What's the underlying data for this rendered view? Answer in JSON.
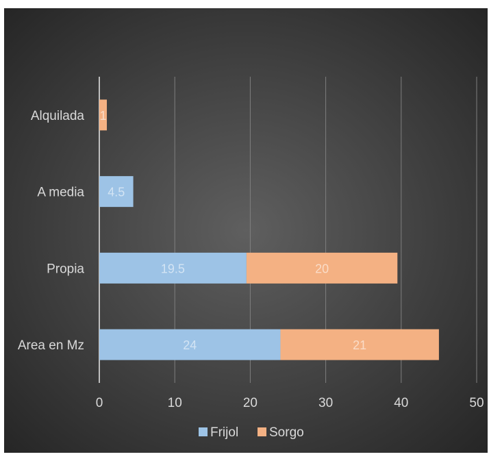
{
  "chart_data": {
    "type": "bar",
    "orientation": "horizontal",
    "stacked": true,
    "title": "",
    "categories": [
      "Area en Mz",
      "Propia",
      "A media",
      "Alquilada"
    ],
    "series": [
      {
        "name": "Frijol",
        "values": [
          24,
          19.5,
          4.5,
          null
        ]
      },
      {
        "name": "Sorgo",
        "values": [
          21,
          20,
          null,
          1
        ]
      }
    ],
    "xlim": [
      0,
      50
    ],
    "xticks": [
      0,
      10,
      20,
      30,
      40,
      50
    ],
    "grid": true,
    "legend": "bottom"
  },
  "colors": {
    "background_center": "#5f5f5f",
    "background_edge": "#262626",
    "frijol": "#9dc3e6",
    "sorgo": "#f4b183",
    "text": "#d9d9d9",
    "grid": "#7f7f7f"
  }
}
